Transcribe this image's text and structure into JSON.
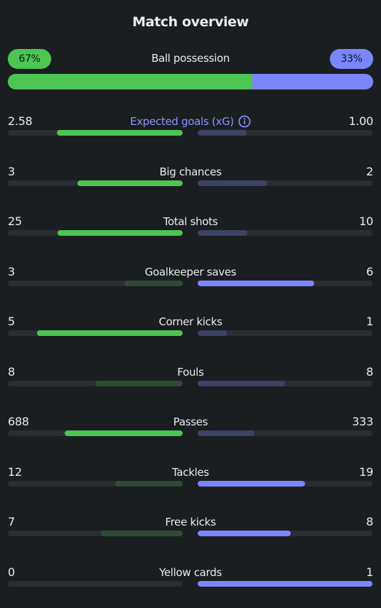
{
  "title": "Match overview",
  "colors": {
    "home_win": "#4cc552",
    "home_lose": "#2f4a34",
    "away_win": "#7a86fc",
    "away_lose": "#3b4264",
    "xg_label": "#8b95ff"
  },
  "possession": {
    "label": "Ball possession",
    "home_label": "67%",
    "away_label": "33%",
    "home": 67,
    "away": 33
  },
  "stats": [
    {
      "label": "Expected goals (xG)",
      "home": "2.58",
      "away": "1.00",
      "home_frac": 0.72,
      "away_frac": 0.28,
      "info_icon": "info-icon",
      "xg": true
    },
    {
      "label": "Big chances",
      "home": "3",
      "away": "2",
      "home_frac": 0.6,
      "away_frac": 0.4
    },
    {
      "label": "Total shots",
      "home": "25",
      "away": "10",
      "home_frac": 0.714,
      "away_frac": 0.286
    },
    {
      "label": "Goalkeeper saves",
      "home": "3",
      "away": "6",
      "home_frac": 0.333,
      "away_frac": 0.667
    },
    {
      "label": "Corner kicks",
      "home": "5",
      "away": "1",
      "home_frac": 0.833,
      "away_frac": 0.167
    },
    {
      "label": "Fouls",
      "home": "8",
      "away": "8",
      "home_frac": 0.5,
      "away_frac": 0.5
    },
    {
      "label": "Passes",
      "home": "688",
      "away": "333",
      "home_frac": 0.674,
      "away_frac": 0.326
    },
    {
      "label": "Tackles",
      "home": "12",
      "away": "19",
      "home_frac": 0.387,
      "away_frac": 0.613
    },
    {
      "label": "Free kicks",
      "home": "7",
      "away": "8",
      "home_frac": 0.467,
      "away_frac": 0.533
    },
    {
      "label": "Yellow cards",
      "home": "0",
      "away": "1",
      "home_frac": 0.0,
      "away_frac": 1.0
    }
  ]
}
